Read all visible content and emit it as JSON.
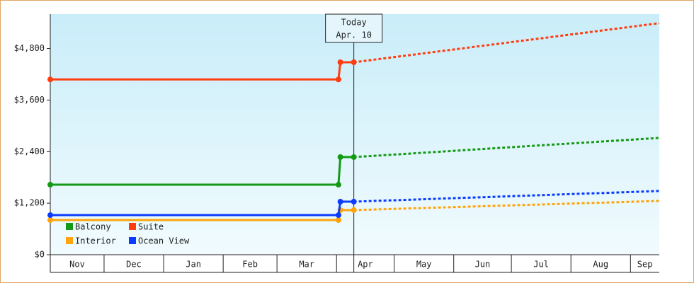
{
  "chart_data": {
    "type": "line",
    "categories": [
      "Nov",
      "Dec",
      "Jan",
      "Feb",
      "Mar",
      "Apr",
      "May",
      "Jun",
      "Jul",
      "Aug",
      "Sep"
    ],
    "category_edges": [
      0,
      28,
      59,
      90,
      118,
      149,
      179,
      210,
      240,
      271,
      302
    ],
    "xlim": [
      0,
      317
    ],
    "ylim": [
      0,
      5600
    ],
    "yticks": [
      {
        "value": 0,
        "label": "$0"
      },
      {
        "value": 1200,
        "label": "$1,200"
      },
      {
        "value": 2400,
        "label": "$2,400"
      },
      {
        "value": 3600,
        "label": "$3,600"
      },
      {
        "value": 4800,
        "label": "$4,800"
      }
    ],
    "x": [
      0,
      150,
      151,
      158
    ],
    "forecast_x": [
      158,
      200,
      240,
      280,
      317
    ],
    "annotation": {
      "x": 158,
      "title": "Today",
      "date": "Apr. 10"
    },
    "legend": "lower left",
    "series": [
      {
        "name": "Balcony",
        "color": "#149a14",
        "values": [
          1630,
          1630,
          2273,
          2273
        ],
        "forecast": [
          2273,
          2390,
          2503,
          2615,
          2718
        ]
      },
      {
        "name": "Suite",
        "color": "#ff3d10",
        "values": [
          4080,
          4080,
          4480,
          4480
        ],
        "forecast": [
          4480,
          4720,
          4949,
          5178,
          5390
        ]
      },
      {
        "name": "Interior",
        "color": "#ffa40a",
        "values": [
          807,
          807,
          1038,
          1038
        ],
        "forecast": [
          1038,
          1095,
          1148,
          1202,
          1252
        ]
      },
      {
        "name": "Ocean View",
        "color": "#0a3cff",
        "values": [
          922,
          922,
          1235,
          1235
        ],
        "forecast": [
          1235,
          1300,
          1362,
          1425,
          1482
        ]
      }
    ]
  }
}
